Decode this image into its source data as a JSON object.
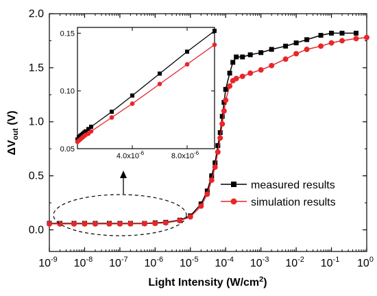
{
  "chart_data": [
    {
      "type": "line",
      "xlabel": "Light Intensity (W/cm",
      "xlabel_sup": "2",
      "xlabel_end": ")",
      "ylabel_prefix": "ΔV",
      "ylabel_sub": "out",
      "ylabel_unit": " (V)",
      "x_scale": "log",
      "xlim": [
        1e-09,
        1
      ],
      "ylim": [
        -0.2,
        2.0
      ],
      "x_tick_exponents": [
        "-9",
        "-8",
        "-7",
        "-6",
        "-5",
        "-4",
        "-3",
        "-2",
        "-1",
        "0"
      ],
      "y_ticks": [
        "0.0",
        "0.5",
        "1.0",
        "1.5",
        "2.0"
      ],
      "y_tick_values": [
        0.0,
        0.5,
        1.0,
        1.5,
        2.0
      ],
      "legend_position": "center-right",
      "series": [
        {
          "name": "measured results",
          "color": "#000000",
          "marker": "square",
          "x": [
            1e-09,
            2e-09,
            5e-09,
            1e-08,
            2e-08,
            5e-08,
            1e-07,
            2e-07,
            5e-07,
            1e-06,
            2e-06,
            5e-06,
            1e-05,
            2e-05,
            3e-05,
            4e-05,
            5e-05,
            6e-05,
            7e-05,
            8e-05,
            9e-05,
            0.0001,
            0.00013,
            0.00016,
            0.0002,
            0.0003,
            0.0005,
            0.001,
            0.002,
            0.005,
            0.01,
            0.02,
            0.05,
            0.1,
            0.2,
            0.5
          ],
          "y": [
            0.06,
            0.06,
            0.06,
            0.06,
            0.06,
            0.06,
            0.06,
            0.06,
            0.06,
            0.065,
            0.07,
            0.09,
            0.13,
            0.24,
            0.36,
            0.5,
            0.62,
            0.78,
            0.9,
            1.05,
            1.18,
            1.3,
            1.45,
            1.55,
            1.6,
            1.6,
            1.62,
            1.64,
            1.67,
            1.7,
            1.73,
            1.76,
            1.8,
            1.82,
            1.82,
            1.82
          ]
        },
        {
          "name": "simulation results",
          "color": "#e8262a",
          "marker": "circle",
          "x": [
            1e-09,
            2e-09,
            5e-09,
            1e-08,
            2e-08,
            5e-08,
            1e-07,
            2e-07,
            5e-07,
            1e-06,
            2e-06,
            5e-06,
            1e-05,
            2e-05,
            3e-05,
            4e-05,
            5e-05,
            6e-05,
            7e-05,
            8e-05,
            9e-05,
            0.0001,
            0.00013,
            0.00016,
            0.0002,
            0.0003,
            0.0005,
            0.001,
            0.002,
            0.005,
            0.01,
            0.02,
            0.05,
            0.1,
            0.2,
            0.5,
            1
          ],
          "y": [
            0.055,
            0.055,
            0.055,
            0.055,
            0.055,
            0.055,
            0.055,
            0.056,
            0.057,
            0.06,
            0.065,
            0.085,
            0.12,
            0.22,
            0.33,
            0.46,
            0.58,
            0.72,
            0.85,
            0.98,
            1.1,
            1.2,
            1.33,
            1.38,
            1.4,
            1.42,
            1.45,
            1.48,
            1.52,
            1.58,
            1.63,
            1.67,
            1.7,
            1.73,
            1.75,
            1.77,
            1.78
          ]
        }
      ],
      "annotation": "dashed ellipse around low-intensity region with arrow pointing to inset"
    },
    {
      "type": "line",
      "role": "inset",
      "xlim": [
        0,
        1e-05
      ],
      "ylim": [
        0.05,
        0.155
      ],
      "x_ticks": [
        {
          "mantissa": "4.0x10",
          "exp": "-6",
          "value": 4e-06
        },
        {
          "mantissa": "8.0x10",
          "exp": "-6",
          "value": 8e-06
        }
      ],
      "y_ticks": [
        "0.05",
        "0.10",
        "0.15"
      ],
      "y_tick_values": [
        0.05,
        0.1,
        0.15
      ],
      "series": [
        {
          "name": "measured results",
          "color": "#000000",
          "marker": "square",
          "x": [
            0,
            1e-07,
            2e-07,
            3e-07,
            4e-07,
            5e-07,
            6e-07,
            8e-07,
            1e-06,
            2.5e-06,
            4e-06,
            6e-06,
            8e-06,
            1e-05
          ],
          "y": [
            0.058,
            0.06,
            0.061,
            0.062,
            0.063,
            0.064,
            0.065,
            0.067,
            0.069,
            0.082,
            0.096,
            0.115,
            0.134,
            0.152
          ]
        },
        {
          "name": "simulation results",
          "color": "#e8262a",
          "marker": "circle",
          "x": [
            0,
            1e-07,
            2e-07,
            3e-07,
            4e-07,
            5e-07,
            6e-07,
            8e-07,
            1e-06,
            2.5e-06,
            4e-06,
            6e-06,
            8e-06,
            1e-05
          ],
          "y": [
            0.056,
            0.057,
            0.058,
            0.059,
            0.06,
            0.061,
            0.062,
            0.063,
            0.065,
            0.077,
            0.089,
            0.106,
            0.123,
            0.14
          ]
        }
      ]
    }
  ]
}
